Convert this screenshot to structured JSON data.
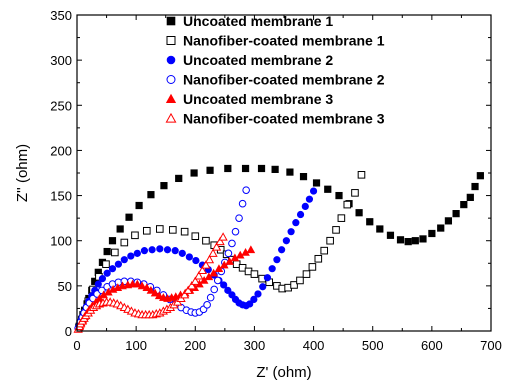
{
  "chart_data": {
    "type": "scatter",
    "title": "",
    "xlabel": "Z' (ohm)",
    "ylabel": "Z'' (ohm)",
    "xlim": [
      0,
      700
    ],
    "ylim": [
      0,
      350
    ],
    "xticks": [
      0,
      100,
      200,
      300,
      400,
      500,
      600,
      700
    ],
    "yticks": [
      0,
      50,
      100,
      150,
      200,
      250,
      300,
      350
    ],
    "x_tick_labels": [
      "0",
      "100",
      "200",
      "300",
      "400",
      "500",
      "600",
      "700"
    ],
    "y_tick_labels": [
      "0",
      "50",
      "100",
      "150",
      "200",
      "250",
      "300",
      "350"
    ],
    "grid": false,
    "legend_position": "top-right",
    "series": [
      {
        "name": "Uncoated membrane 1",
        "marker": "square",
        "filled": true,
        "color": "#000000",
        "points": [
          [
            3,
            4
          ],
          [
            5,
            8
          ],
          [
            8,
            13
          ],
          [
            10,
            18
          ],
          [
            13,
            23
          ],
          [
            17,
            30
          ],
          [
            20,
            36
          ],
          [
            25,
            45
          ],
          [
            30,
            55
          ],
          [
            36,
            65
          ],
          [
            43,
            76
          ],
          [
            51,
            88
          ],
          [
            60,
            100
          ],
          [
            73,
            113
          ],
          [
            88,
            126
          ],
          [
            105,
            139
          ],
          [
            125,
            151
          ],
          [
            147,
            161
          ],
          [
            172,
            169
          ],
          [
            198,
            175
          ],
          [
            225,
            178
          ],
          [
            255,
            180
          ],
          [
            285,
            180
          ],
          [
            312,
            180
          ],
          [
            335,
            179
          ],
          [
            360,
            176
          ],
          [
            383,
            171
          ],
          [
            405,
            164
          ],
          [
            424,
            157
          ],
          [
            443,
            150
          ],
          [
            460,
            141
          ],
          [
            477,
            131
          ],
          [
            495,
            121
          ],
          [
            512,
            113
          ],
          [
            530,
            106
          ],
          [
            547,
            101
          ],
          [
            560,
            99
          ],
          [
            572,
            100
          ],
          [
            585,
            102
          ],
          [
            600,
            108
          ],
          [
            615,
            114
          ],
          [
            628,
            122
          ],
          [
            641,
            130
          ],
          [
            654,
            140
          ],
          [
            665,
            148
          ],
          [
            673,
            160
          ],
          [
            682,
            172
          ]
        ]
      },
      {
        "name": "Nanofiber-coated membrane 1",
        "marker": "square",
        "filled": false,
        "color": "#000000",
        "points": [
          [
            4,
            5
          ],
          [
            8,
            12
          ],
          [
            13,
            21
          ],
          [
            19,
            33
          ],
          [
            27,
            46
          ],
          [
            37,
            60
          ],
          [
            49,
            74
          ],
          [
            64,
            87
          ],
          [
            80,
            98
          ],
          [
            98,
            106
          ],
          [
            118,
            111
          ],
          [
            140,
            113
          ],
          [
            162,
            112
          ],
          [
            182,
            110
          ],
          [
            200,
            105
          ],
          [
            218,
            100
          ],
          [
            232,
            95
          ],
          [
            243,
            90
          ],
          [
            253,
            85
          ],
          [
            262,
            79
          ],
          [
            270,
            74
          ],
          [
            280,
            70
          ],
          [
            290,
            66
          ],
          [
            300,
            63
          ],
          [
            313,
            58
          ],
          [
            325,
            54
          ],
          [
            338,
            50
          ],
          [
            347,
            47
          ],
          [
            357,
            48
          ],
          [
            367,
            51
          ],
          [
            377,
            56
          ],
          [
            388,
            63
          ],
          [
            398,
            71
          ],
          [
            408,
            80
          ],
          [
            418,
            89
          ],
          [
            428,
            100
          ],
          [
            438,
            112
          ],
          [
            447,
            125
          ],
          [
            457,
            140
          ],
          [
            470,
            153
          ],
          [
            481,
            173
          ]
        ]
      },
      {
        "name": "Uncoated membrane 2",
        "marker": "circle",
        "filled": true,
        "color": "#0000ff",
        "points": [
          [
            3,
            4
          ],
          [
            5,
            8
          ],
          [
            7,
            12
          ],
          [
            10,
            16
          ],
          [
            13,
            21
          ],
          [
            16,
            27
          ],
          [
            20,
            33
          ],
          [
            25,
            39
          ],
          [
            30,
            45
          ],
          [
            36,
            52
          ],
          [
            43,
            58
          ],
          [
            51,
            64
          ],
          [
            60,
            69
          ],
          [
            70,
            74
          ],
          [
            80,
            79
          ],
          [
            91,
            83
          ],
          [
            102,
            86
          ],
          [
            114,
            89
          ],
          [
            127,
            90
          ],
          [
            140,
            91
          ],
          [
            153,
            90
          ],
          [
            166,
            89
          ],
          [
            178,
            86
          ],
          [
            190,
            82
          ],
          [
            201,
            78
          ],
          [
            212,
            73
          ],
          [
            222,
            68
          ],
          [
            232,
            62
          ],
          [
            240,
            56
          ],
          [
            248,
            51
          ],
          [
            255,
            45
          ],
          [
            262,
            40
          ],
          [
            268,
            35
          ],
          [
            274,
            31
          ],
          [
            280,
            29
          ],
          [
            286,
            28
          ],
          [
            292,
            30
          ],
          [
            299,
            35
          ],
          [
            306,
            41
          ],
          [
            314,
            49
          ],
          [
            322,
            59
          ],
          [
            330,
            69
          ],
          [
            338,
            79
          ],
          [
            346,
            90
          ],
          [
            354,
            100
          ],
          [
            362,
            110
          ],
          [
            370,
            120
          ],
          [
            378,
            129
          ],
          [
            386,
            138
          ],
          [
            393,
            146
          ],
          [
            400,
            155
          ]
        ]
      },
      {
        "name": "Nanofiber-coated membrane 2",
        "marker": "circle",
        "filled": false,
        "color": "#0000ff",
        "points": [
          [
            2,
            3
          ],
          [
            4,
            6
          ],
          [
            6,
            10
          ],
          [
            9,
            15
          ],
          [
            12,
            20
          ],
          [
            16,
            26
          ],
          [
            21,
            31
          ],
          [
            27,
            36
          ],
          [
            34,
            41
          ],
          [
            42,
            45
          ],
          [
            51,
            49
          ],
          [
            60,
            52
          ],
          [
            70,
            54
          ],
          [
            80,
            55
          ],
          [
            91,
            55
          ],
          [
            102,
            54
          ],
          [
            113,
            52
          ],
          [
            124,
            49
          ],
          [
            135,
            45
          ],
          [
            146,
            40
          ],
          [
            157,
            35
          ],
          [
            167,
            30
          ],
          [
            176,
            26
          ],
          [
            185,
            23
          ],
          [
            193,
            21
          ],
          [
            200,
            20
          ],
          [
            207,
            21
          ],
          [
            214,
            24
          ],
          [
            220,
            29
          ],
          [
            226,
            37
          ],
          [
            232,
            46
          ],
          [
            238,
            56
          ],
          [
            244,
            66
          ],
          [
            250,
            76
          ],
          [
            256,
            86
          ],
          [
            262,
            97
          ],
          [
            268,
            110
          ],
          [
            274,
            125
          ],
          [
            280,
            141
          ],
          [
            286,
            156
          ]
        ]
      },
      {
        "name": "Uncoated membrane 3",
        "marker": "triangle",
        "filled": true,
        "color": "#ff0000",
        "points": [
          [
            3,
            3
          ],
          [
            5,
            6
          ],
          [
            7,
            9
          ],
          [
            10,
            12
          ],
          [
            13,
            16
          ],
          [
            17,
            20
          ],
          [
            21,
            24
          ],
          [
            26,
            28
          ],
          [
            32,
            32
          ],
          [
            38,
            36
          ],
          [
            45,
            40
          ],
          [
            53,
            43
          ],
          [
            61,
            46
          ],
          [
            69,
            48
          ],
          [
            77,
            50
          ],
          [
            86,
            51
          ],
          [
            94,
            52
          ],
          [
            102,
            52
          ],
          [
            110,
            50
          ],
          [
            118,
            48
          ],
          [
            125,
            45
          ],
          [
            132,
            42
          ],
          [
            139,
            39
          ],
          [
            146,
            37
          ],
          [
            153,
            36
          ],
          [
            160,
            37
          ],
          [
            167,
            38
          ],
          [
            175,
            40
          ],
          [
            183,
            42
          ],
          [
            191,
            45
          ],
          [
            199,
            48
          ],
          [
            207,
            52
          ],
          [
            215,
            56
          ],
          [
            223,
            60
          ],
          [
            231,
            64
          ],
          [
            240,
            69
          ],
          [
            249,
            73
          ],
          [
            258,
            77
          ],
          [
            267,
            81
          ],
          [
            276,
            84
          ],
          [
            285,
            87
          ],
          [
            294,
            90
          ]
        ]
      },
      {
        "name": "Nanofiber-coated membrane 3",
        "marker": "triangle",
        "filled": false,
        "color": "#ff0000",
        "points": [
          [
            2,
            2
          ],
          [
            4,
            5
          ],
          [
            6,
            8
          ],
          [
            9,
            11
          ],
          [
            12,
            14
          ],
          [
            15,
            17
          ],
          [
            19,
            20
          ],
          [
            23,
            23
          ],
          [
            28,
            26
          ],
          [
            33,
            28
          ],
          [
            38,
            30
          ],
          [
            44,
            31
          ],
          [
            50,
            32
          ],
          [
            56,
            32
          ],
          [
            62,
            31
          ],
          [
            68,
            30
          ],
          [
            74,
            28
          ],
          [
            80,
            26
          ],
          [
            86,
            24
          ],
          [
            92,
            22
          ],
          [
            98,
            20
          ],
          [
            104,
            19
          ],
          [
            110,
            18
          ],
          [
            116,
            18
          ],
          [
            122,
            18
          ],
          [
            128,
            18
          ],
          [
            134,
            19
          ],
          [
            140,
            20
          ],
          [
            146,
            22
          ],
          [
            152,
            24
          ],
          [
            158,
            26
          ],
          [
            164,
            29
          ],
          [
            170,
            32
          ],
          [
            176,
            36
          ],
          [
            182,
            40
          ],
          [
            188,
            45
          ],
          [
            194,
            50
          ],
          [
            200,
            55
          ],
          [
            206,
            61
          ],
          [
            212,
            67
          ],
          [
            218,
            73
          ],
          [
            224,
            79
          ],
          [
            230,
            86
          ],
          [
            236,
            93
          ],
          [
            242,
            99
          ],
          [
            247,
            104
          ]
        ]
      }
    ]
  }
}
